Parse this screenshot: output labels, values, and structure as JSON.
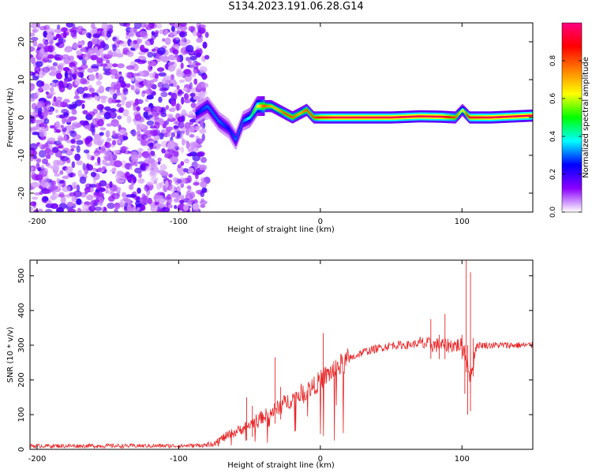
{
  "title": "S134.2023.191.06.28.G14",
  "chart_data": [
    {
      "type": "heatmap",
      "xlabel": "Height of straight line (km)",
      "ylabel": "Frequency (Hz)",
      "xlim": [
        -205,
        150
      ],
      "ylim": [
        -25,
        25
      ],
      "xticks": [
        -200,
        -100,
        0,
        100
      ],
      "yticks": [
        -20,
        -10,
        0,
        10,
        20
      ],
      "colorbar": {
        "label": "Normalized spectral amplitude",
        "range": [
          0,
          1
        ],
        "ticks": [
          "0.0",
          "0.2",
          "0.4",
          "0.6",
          "0.8"
        ],
        "colors": [
          "#ffffff",
          "#8b00ff",
          "#0000ff",
          "#00ffff",
          "#00ff00",
          "#ffff00",
          "#ff8000",
          "#ff0000",
          "#ff0080"
        ]
      },
      "noise_region_x": [
        -205,
        -80
      ],
      "ridge": {
        "x": [
          -88,
          -80,
          -72,
          -65,
          -60,
          -55,
          -50,
          -45,
          -40,
          -35,
          -30,
          -25,
          -20,
          -15,
          -10,
          -5,
          0,
          10,
          30,
          50,
          70,
          85,
          95,
          100,
          105,
          120,
          150
        ],
        "freq": [
          1,
          3,
          -1,
          -3,
          -6,
          -1,
          0,
          3,
          3,
          3,
          2,
          1,
          0,
          1,
          2,
          0,
          0,
          0,
          0,
          0,
          0.3,
          0.2,
          0,
          2,
          0,
          0,
          0.5
        ],
        "amplitude": [
          0.25,
          0.3,
          0.3,
          0.25,
          0.3,
          0.3,
          0.4,
          0.6,
          0.8,
          0.7,
          0.7,
          0.8,
          0.8,
          0.7,
          0.8,
          0.8,
          0.9,
          0.95,
          0.95,
          0.95,
          0.95,
          0.95,
          0.8,
          0.6,
          0.9,
          0.95,
          0.95
        ]
      }
    },
    {
      "type": "line",
      "xlabel": "Height of straight line (km)",
      "ylabel": "SNR (10 * v/v)",
      "xlim": [
        -205,
        150
      ],
      "ylim": [
        0,
        545
      ],
      "xticks": [
        -200,
        -100,
        0,
        100
      ],
      "yticks": [
        0,
        100,
        200,
        300,
        400,
        500
      ],
      "color": "#e8282a",
      "series": [
        {
          "x": [
            -205,
            -180,
            -150,
            -120,
            -100,
            -80,
            -75,
            -70,
            -65,
            -60,
            -55,
            -50,
            -45,
            -40,
            -35,
            -30,
            -25,
            -20,
            -15,
            -10,
            -5,
            0,
            5,
            10,
            15,
            20,
            25,
            30,
            40,
            50,
            60,
            70,
            80,
            90,
            100,
            104,
            106,
            110,
            120,
            130,
            140,
            150
          ],
          "y": [
            10,
            10,
            10,
            10,
            10,
            12,
            20,
            30,
            40,
            50,
            60,
            70,
            85,
            95,
            105,
            120,
            135,
            145,
            160,
            170,
            180,
            200,
            215,
            230,
            245,
            260,
            270,
            280,
            290,
            300,
            300,
            305,
            300,
            300,
            300,
            250,
            200,
            300,
            300,
            300,
            300,
            300
          ]
        }
      ],
      "spikes": [
        {
          "x": -52,
          "y": 150
        },
        {
          "x": -48,
          "y": 125
        },
        {
          "x": -32,
          "y": 265
        },
        {
          "x": -28,
          "y": 180
        },
        {
          "x": 2,
          "y": 335
        },
        {
          "x": 78,
          "y": 375
        },
        {
          "x": 84,
          "y": 330
        },
        {
          "x": 88,
          "y": 390
        },
        {
          "x": 100,
          "y": 330
        },
        {
          "x": 103,
          "y": 545
        },
        {
          "x": 106,
          "y": 510
        },
        {
          "x": 108,
          "y": 320
        }
      ]
    }
  ]
}
